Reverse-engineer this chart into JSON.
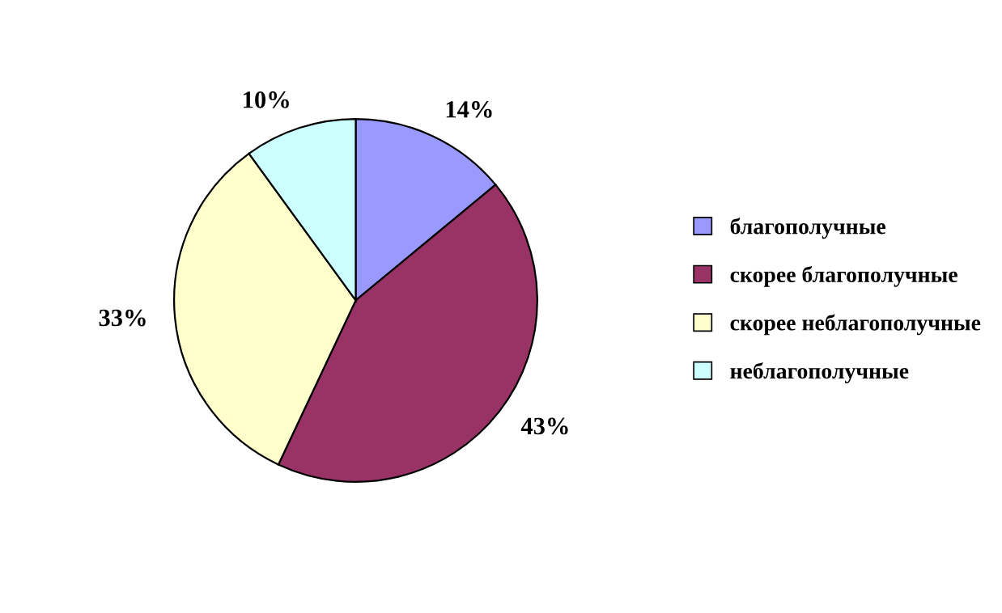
{
  "chart_data": {
    "type": "pie",
    "categories": [
      "благополучные",
      "скорее благополучные",
      "скорее неблагополучные",
      "неблагополучные"
    ],
    "values": [
      14,
      43,
      33,
      10
    ],
    "value_labels": [
      "14%",
      "43%",
      "33%",
      "10%"
    ],
    "colors": [
      "#9999ff",
      "#993366",
      "#ffffcc",
      "#ccffff"
    ],
    "legend": "right"
  }
}
